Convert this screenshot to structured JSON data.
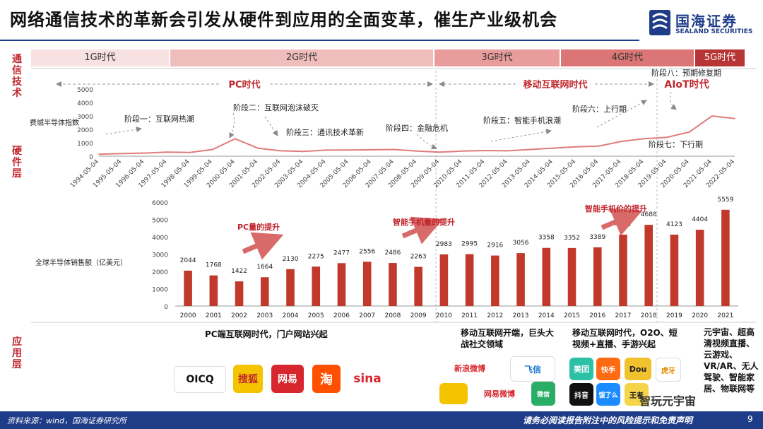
{
  "title": "网络通信技术的革新会引发从硬件到应用的全面变革，催生产业级机会",
  "logo": {
    "name": "国海证券",
    "en": "SEALAND SECURITIES"
  },
  "side_labels": {
    "comm": "通信技术",
    "hw": "硬件层",
    "app": "应用层"
  },
  "eras": [
    {
      "label": "1G时代",
      "color": "#f7e1e1"
    },
    {
      "label": "2G时代",
      "color": "#f0bdbd"
    },
    {
      "label": "3G时代",
      "color": "#e89c9c"
    },
    {
      "label": "4G时代",
      "color": "#dc7676"
    },
    {
      "label": "5G时代",
      "color": "#b83535"
    }
  ],
  "segments": {
    "pc": "PC时代",
    "mobile": "移动互联网时代",
    "aiot": "AIoT时代"
  },
  "stages": [
    "阶段一：互联网热潮",
    "阶段二：互联网泡沫破灭",
    "阶段三：通讯技术革新",
    "阶段四：金融危机",
    "阶段五：智能手机浪潮",
    "阶段六：上行期",
    "阶段七：下行期",
    "阶段八：预期修复期"
  ],
  "annotations": {
    "pc_up": "PC量的提升",
    "phone_up": "智能手机量的提升",
    "phone_price": "智能手机价的提升"
  },
  "apps": {
    "pc": "PC端互联网时代，门户网站兴起",
    "mobile": "移动互联网开端，巨头大战社交领域",
    "o2o": "移动互联网时代，O2O、短视频+直播、手游兴起",
    "future": "元宇宙、超高清视频直播、云游戏、VR/AR、无人驾驶、智能家居、物联网等"
  },
  "app_logos": {
    "pc": [
      "OICQ",
      "搜狐",
      "网易",
      "淘",
      "sina"
    ],
    "mobile": [
      "新浪微博",
      "飞信",
      "网易微博",
      "微信"
    ],
    "o2o": [
      "美团",
      "快手",
      "Dou",
      "虎牙",
      "抖音",
      "饿了么",
      "王者"
    ]
  },
  "footer": {
    "source": "资料来源：wind，国海证券研究所",
    "disclaimer": "请务必阅读报告附注中的风险提示和免责声明",
    "page": "9"
  },
  "watermark": "智玩元宇宙",
  "colors": {
    "accent": "#c0272d",
    "brand": "#1f3c88",
    "line": "#e07b7b",
    "bar": "#c0392b"
  },
  "chart_data": [
    {
      "type": "line",
      "ylabel": "费城半导体指数",
      "ylim": [
        0,
        5000
      ],
      "yticks": [
        0,
        1000,
        2000,
        3000,
        4000,
        5000
      ],
      "x": [
        "1994-05-04",
        "1995-05-04",
        "1996-05-04",
        "1997-05-04",
        "1998-05-04",
        "1999-05-04",
        "2000-05-04",
        "2001-05-04",
        "2002-05-04",
        "2003-05-04",
        "2004-05-04",
        "2005-05-04",
        "2006-05-04",
        "2007-05-04",
        "2008-05-04",
        "2009-05-04",
        "2010-05-04",
        "2011-05-04",
        "2012-05-04",
        "2013-05-04",
        "2014-05-04",
        "2015-05-04",
        "2016-05-04",
        "2017-05-04",
        "2018-05-04",
        "2019-05-04",
        "2020-05-04",
        "2021-05-04",
        "2022-05-04"
      ],
      "y": [
        150,
        200,
        230,
        300,
        280,
        500,
        1300,
        600,
        400,
        350,
        450,
        460,
        480,
        500,
        380,
        300,
        380,
        420,
        400,
        500,
        600,
        700,
        750,
        1100,
        1300,
        1400,
        1800,
        3000,
        2800
      ]
    },
    {
      "type": "bar",
      "ylabel": "全球半导体销售额（亿美元）",
      "ylim": [
        0,
        6000
      ],
      "yticks": [
        0,
        1000,
        2000,
        3000,
        4000,
        5000,
        6000
      ],
      "categories": [
        "2000",
        "2001",
        "2002",
        "2003",
        "2004",
        "2005",
        "2006",
        "2007",
        "2008",
        "2009",
        "2010",
        "2011",
        "2012",
        "2013",
        "2014",
        "2015",
        "2016",
        "2017",
        "2018",
        "2019",
        "2020",
        "2021"
      ],
      "values": [
        2044,
        1768,
        1422,
        1664,
        2130,
        2275,
        2477,
        2556,
        2486,
        2263,
        2983,
        2995,
        2916,
        3056,
        3358,
        3352,
        3389,
        4122,
        4688,
        4123,
        4404,
        5559
      ]
    }
  ]
}
